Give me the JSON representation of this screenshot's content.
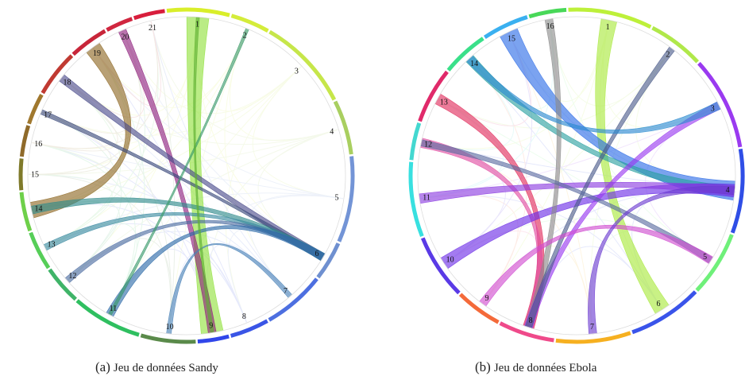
{
  "panels": [
    {
      "id": "sandy",
      "caption_tag": "(a)",
      "caption_text": "Jeu de données Sandy",
      "segments": [
        {
          "label": "1",
          "color": "#d9ee2a",
          "span": 0.8
        },
        {
          "label": "2",
          "color": "#d4ec3a",
          "span": 0.5
        },
        {
          "label": "3",
          "color": "#c6e64a",
          "span": 1.2
        },
        {
          "label": "4",
          "color": "#a9cf60",
          "span": 0.7
        },
        {
          "label": "5",
          "color": "#7394d6",
          "span": 1.1
        },
        {
          "label": "6",
          "color": "#6f90d0",
          "span": 0.5
        },
        {
          "label": "7",
          "color": "#4d6fe0",
          "span": 0.8
        },
        {
          "label": "8",
          "color": "#3a55e6",
          "span": 0.5
        },
        {
          "label": "9",
          "color": "#3046ea",
          "span": 0.4
        },
        {
          "label": "10",
          "color": "#5a8a4a",
          "span": 0.7
        },
        {
          "label": "11",
          "color": "#2fbf60",
          "span": 0.9
        },
        {
          "label": "12",
          "color": "#3fb468",
          "span": 0.5
        },
        {
          "label": "13",
          "color": "#56ce58",
          "span": 0.5
        },
        {
          "label": "14",
          "color": "#6ed04a",
          "span": 0.5
        },
        {
          "label": "15",
          "color": "#7f7a2a",
          "span": 0.4
        },
        {
          "label": "16",
          "color": "#8f6a2a",
          "span": 0.4
        },
        {
          "label": "17",
          "color": "#a0782e",
          "span": 0.4
        },
        {
          "label": "18",
          "color": "#c03a32",
          "span": 0.6
        },
        {
          "label": "19",
          "color": "#c8263a",
          "span": 0.5
        },
        {
          "label": "20",
          "color": "#d0263f",
          "span": 0.35
        },
        {
          "label": "21",
          "color": "#d81e3c",
          "span": 0.4
        }
      ],
      "ribbons": [
        {
          "from": 1,
          "to": 9,
          "color": "#8fe03a",
          "width": 0.14
        },
        {
          "from": 20,
          "to": 9,
          "color": "#8e1f7c",
          "width": 0.05
        },
        {
          "from": 19,
          "to": 14,
          "color": "#8c6520",
          "width": 0.1
        },
        {
          "from": 18,
          "to": 6,
          "color": "#4a4a8a",
          "width": 0.05
        },
        {
          "from": 17,
          "to": 6,
          "color": "#3c4a7a",
          "width": 0.03
        },
        {
          "from": 14,
          "to": 6,
          "color": "#2e8a8a",
          "width": 0.05
        },
        {
          "from": 13,
          "to": 6,
          "color": "#3a8aa0",
          "width": 0.04
        },
        {
          "from": 12,
          "to": 6,
          "color": "#4a6aa0",
          "width": 0.04
        },
        {
          "from": 11,
          "to": 6,
          "color": "#2d6aa8",
          "width": 0.05
        },
        {
          "from": 10,
          "to": 7,
          "color": "#4a82b8",
          "width": 0.03
        },
        {
          "from": 11,
          "to": 2,
          "color": "#3a9a6a",
          "width": 0.02
        },
        {
          "from": 9,
          "to": 1,
          "color": "#5eb032",
          "width": 0.02
        }
      ]
    },
    {
      "id": "ebola",
      "caption_tag": "(b)",
      "caption_text": "Jeu de données Ebola",
      "segments": [
        {
          "label": "1",
          "color": "#bdf03a",
          "span": 0.9
        },
        {
          "label": "2",
          "color": "#b0e84a",
          "span": 0.6
        },
        {
          "label": "3",
          "color": "#9a3af0",
          "span": 1.0
        },
        {
          "label": "4",
          "color": "#2f4ee6",
          "span": 0.9
        },
        {
          "label": "5",
          "color": "#6ff07a",
          "span": 0.7
        },
        {
          "label": "6",
          "color": "#3a54ea",
          "span": 0.8
        },
        {
          "label": "7",
          "color": "#f6b020",
          "span": 0.8
        },
        {
          "label": "8",
          "color": "#ef4a8a",
          "span": 0.6
        },
        {
          "label": "9",
          "color": "#f46a3a",
          "span": 0.5
        },
        {
          "label": "10",
          "color": "#5a3ae6",
          "span": 0.7
        },
        {
          "label": "11",
          "color": "#38e0e0",
          "span": 0.8
        },
        {
          "label": "12",
          "color": "#44d8d0",
          "span": 0.4
        },
        {
          "label": "13",
          "color": "#e02a6a",
          "span": 0.6
        },
        {
          "label": "14",
          "color": "#3ae08a",
          "span": 0.5
        },
        {
          "label": "15",
          "color": "#3ab0f0",
          "span": 0.5
        },
        {
          "label": "16",
          "color": "#48d858",
          "span": 0.4
        }
      ],
      "ribbons": [
        {
          "from": 1,
          "to": 6,
          "color": "#a8e83a",
          "width": 0.1
        },
        {
          "from": 15,
          "to": 4,
          "color": "#2a6ae6",
          "width": 0.12
        },
        {
          "from": 14,
          "to": 4,
          "color": "#2aa0a0",
          "width": 0.06
        },
        {
          "from": 13,
          "to": 8,
          "color": "#e02a5a",
          "width": 0.07
        },
        {
          "from": 12,
          "to": 8,
          "color": "#e04aa0",
          "width": 0.06
        },
        {
          "from": 10,
          "to": 4,
          "color": "#6a2ae6",
          "width": 0.08
        },
        {
          "from": 11,
          "to": 4,
          "color": "#8a3ae0",
          "width": 0.06
        },
        {
          "from": 16,
          "to": 8,
          "color": "#8a8a8a",
          "width": 0.05
        },
        {
          "from": 3,
          "to": 8,
          "color": "#9a3af0",
          "width": 0.05
        },
        {
          "from": 2,
          "to": 8,
          "color": "#4a5a8a",
          "width": 0.04
        },
        {
          "from": 5,
          "to": 12,
          "color": "#5a6aa0",
          "width": 0.04
        },
        {
          "from": 14,
          "to": 3,
          "color": "#2a8ad0",
          "width": 0.05
        },
        {
          "from": 9,
          "to": 5,
          "color": "#d04ad0",
          "width": 0.05
        },
        {
          "from": 7,
          "to": 4,
          "color": "#6a3ad0",
          "width": 0.05
        }
      ]
    }
  ]
}
